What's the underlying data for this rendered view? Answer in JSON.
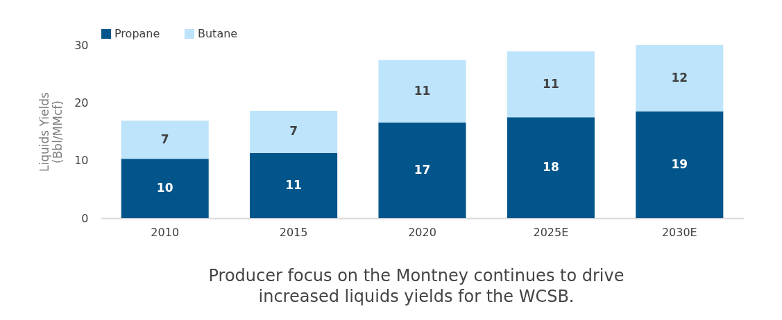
{
  "chart_data": {
    "type": "bar",
    "stacked": true,
    "ylabel": "Liquids Yields (Bbl/MMcf)",
    "categories": [
      "2010",
      "2015",
      "2020",
      "2025E",
      "2030E"
    ],
    "series": [
      {
        "name": "Propane",
        "color": "#02558b",
        "values": [
          10.3,
          11.3,
          16.6,
          17.5,
          18.5
        ],
        "value_labels": [
          "10",
          "11",
          "17",
          "18",
          "19"
        ]
      },
      {
        "name": "Butane",
        "color": "#bde4fb",
        "values": [
          6.6,
          7.3,
          10.8,
          11.4,
          11.5
        ],
        "value_labels": [
          "7",
          "7",
          "11",
          "11",
          "12"
        ]
      }
    ],
    "ylim": [
      0,
      30
    ],
    "yticks": [
      0,
      10,
      20,
      30
    ],
    "grid": false,
    "legend": "top left",
    "annotations": [
      "Producer focus on the Montney continues to drive increased liquids yields for the WCSB."
    ]
  }
}
